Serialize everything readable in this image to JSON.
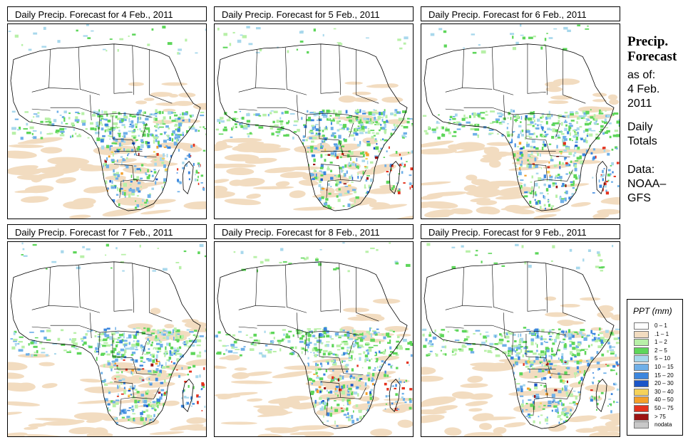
{
  "panels": [
    {
      "title": "Daily Precip. Forecast for  4 Feb., 2011"
    },
    {
      "title": "Daily Precip. Forecast for  5 Feb., 2011"
    },
    {
      "title": "Daily Precip. Forecast for  6 Feb., 2011"
    },
    {
      "title": "Daily Precip. Forecast for  7 Feb., 2011"
    },
    {
      "title": "Daily Precip. Forecast for  8 Feb., 2011"
    },
    {
      "title": "Daily Precip. Forecast for  9 Feb., 2011"
    }
  ],
  "sidebar": {
    "heading_line1": "Precip.",
    "heading_line2": "Forecast",
    "asof_label": "as of:",
    "date_line1": "4 Feb.",
    "date_line2": "2011",
    "totals_line1": "Daily",
    "totals_line2": "Totals",
    "data_line1": "Data:",
    "data_line2": "NOAA–",
    "data_line3": "GFS"
  },
  "legend": {
    "title": "PPT (mm)",
    "items": [
      {
        "label": "0 – 1",
        "color": "#ffffff"
      },
      {
        "label": ".1 – 1",
        "color": "#f2dcc0"
      },
      {
        "label": "1 – 2",
        "color": "#b8f0a8"
      },
      {
        "label": "2 – 5",
        "color": "#5ed65a"
      },
      {
        "label": "5 – 10",
        "color": "#a8d8ec"
      },
      {
        "label": "10 – 15",
        "color": "#6fb0e8"
      },
      {
        "label": "15 – 20",
        "color": "#3c86de"
      },
      {
        "label": "20 – 30",
        "color": "#1a55c8"
      },
      {
        "label": "30 – 40",
        "color": "#f5d25a"
      },
      {
        "label": "40 – 50",
        "color": "#f5a02a"
      },
      {
        "label": "50 – 75",
        "color": "#e4321e"
      },
      {
        "label": "> 75",
        "color": "#9c1414"
      },
      {
        "label": "nodata",
        "color": "#c8c8c8"
      }
    ]
  }
}
